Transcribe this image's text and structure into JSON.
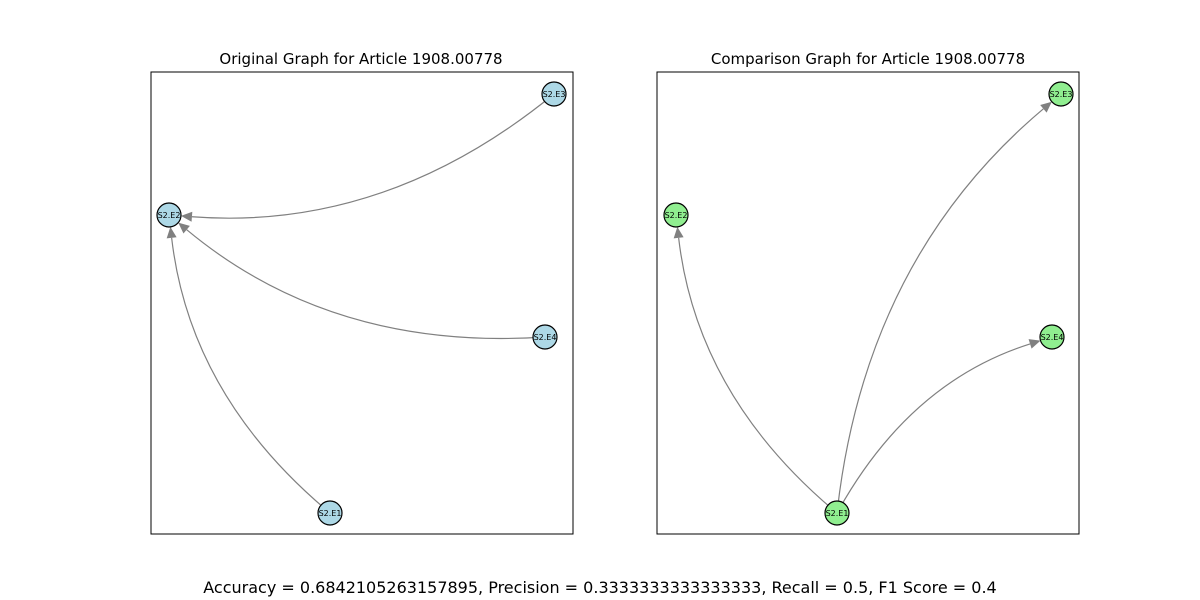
{
  "colors": {
    "original_node": "#add8e6",
    "comparison_node": "#90ee90",
    "edge": "#808080"
  },
  "panels": [
    {
      "title": "Original Graph for Article 1908.00778",
      "nodes": [
        "S2.E1",
        "S2.E2",
        "S2.E3",
        "S2.E4"
      ],
      "edges": [
        {
          "from": "S2.E3",
          "to": "S2.E2"
        },
        {
          "from": "S2.E4",
          "to": "S2.E2"
        },
        {
          "from": "S2.E1",
          "to": "S2.E2"
        }
      ]
    },
    {
      "title": "Comparison Graph for Article 1908.00778",
      "nodes": [
        "S2.E1",
        "S2.E2",
        "S2.E3",
        "S2.E4"
      ],
      "edges": [
        {
          "from": "S2.E1",
          "to": "S2.E2"
        },
        {
          "from": "S2.E1",
          "to": "S2.E3"
        },
        {
          "from": "S2.E1",
          "to": "S2.E4"
        }
      ]
    }
  ],
  "metrics_text": "Accuracy = 0.6842105263157895, Precision = 0.3333333333333333, Recall = 0.5, F1 Score = 0.4"
}
